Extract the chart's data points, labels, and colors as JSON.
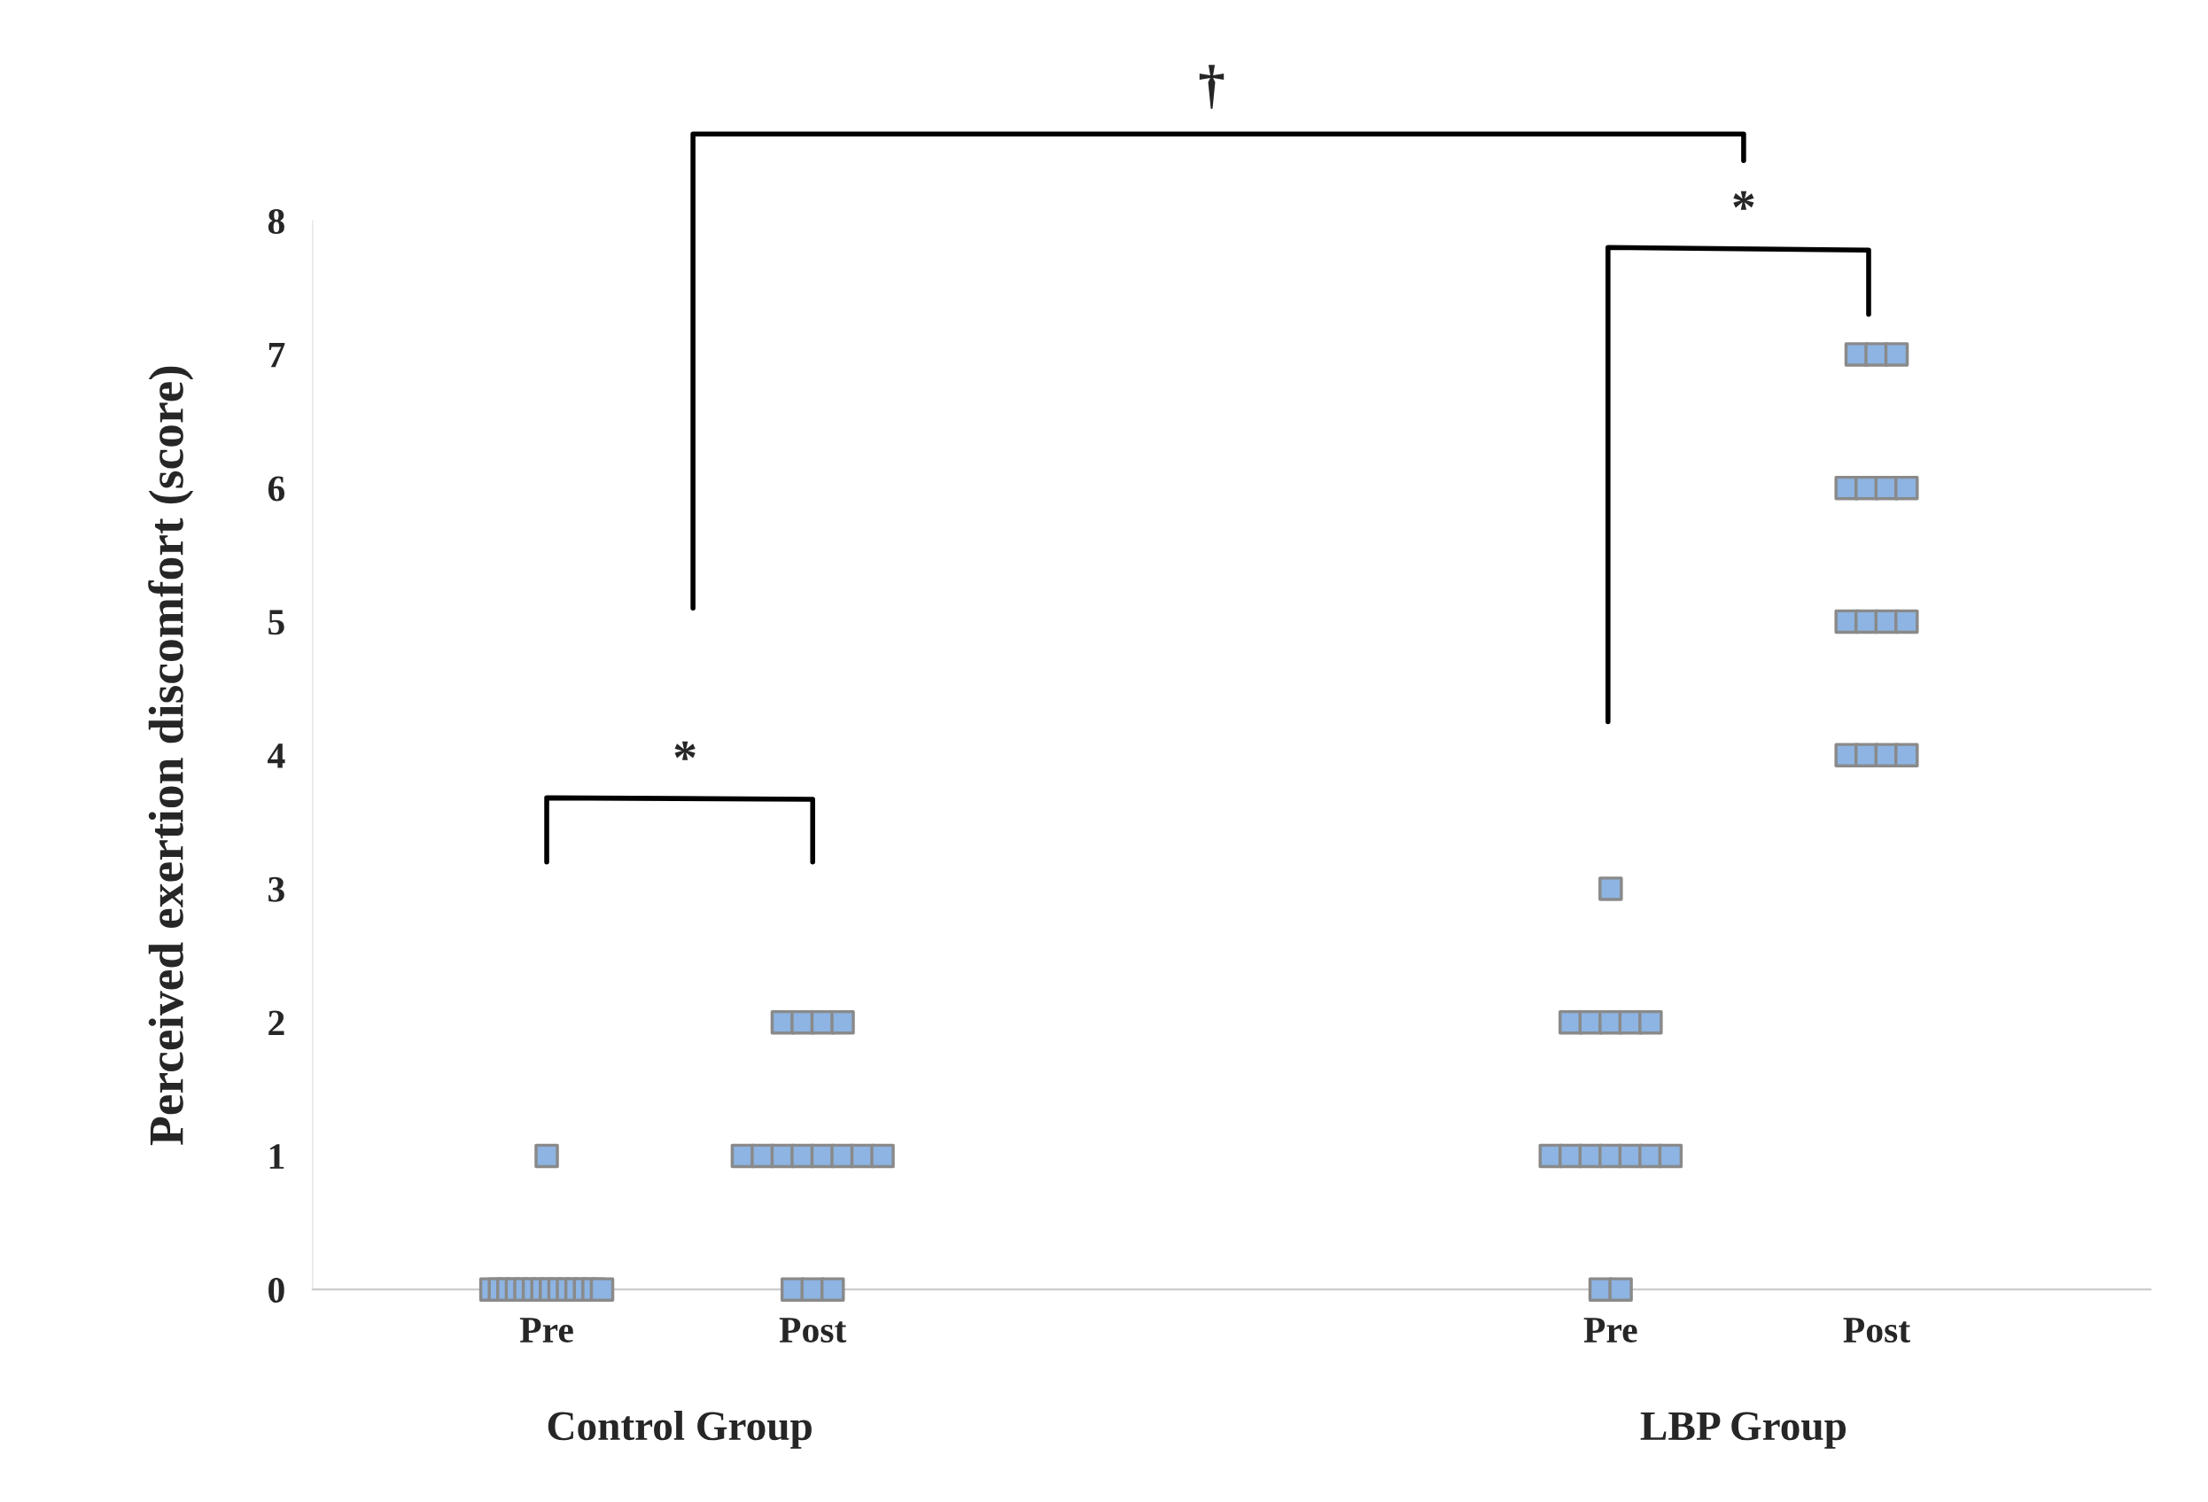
{
  "chart_data": {
    "type": "scatter",
    "ylabel": "Perceived exertion discomfort (score)",
    "categories": [
      "Pre",
      "Post",
      null,
      null,
      "Pre",
      "Post"
    ],
    "ylim": [
      0,
      8
    ],
    "yticks": [
      0,
      1,
      2,
      3,
      4,
      5,
      6,
      7,
      8
    ],
    "grid": false,
    "marker": "square",
    "series": [
      {
        "color": "#8db4e2",
        "values": [
          1,
          2,
          null,
          null,
          3,
          7
        ]
      },
      {
        "color": "#8db4e2",
        "values": [
          0,
          2,
          null,
          null,
          2,
          7
        ]
      },
      {
        "color": "#8db4e2",
        "values": [
          0,
          2,
          null,
          null,
          2,
          7
        ]
      },
      {
        "color": "#8db4e2",
        "values": [
          0,
          2,
          null,
          null,
          2,
          6
        ]
      },
      {
        "color": "#8db4e2",
        "values": [
          0,
          1,
          null,
          null,
          2,
          6
        ]
      },
      {
        "color": "#8db4e2",
        "values": [
          0,
          1,
          null,
          null,
          2,
          6
        ]
      },
      {
        "color": "#8db4e2",
        "values": [
          0,
          1,
          null,
          null,
          1,
          6
        ]
      },
      {
        "color": "#8db4e2",
        "values": [
          0,
          1,
          null,
          null,
          1,
          5
        ]
      },
      {
        "color": "#8db4e2",
        "values": [
          0,
          1,
          null,
          null,
          1,
          5
        ]
      },
      {
        "color": "#8db4e2",
        "values": [
          0,
          1,
          null,
          null,
          1,
          5
        ]
      },
      {
        "color": "#8db4e2",
        "values": [
          0,
          1,
          null,
          null,
          1,
          5
        ]
      },
      {
        "color": "#8db4e2",
        "values": [
          0,
          1,
          null,
          null,
          1,
          4
        ]
      },
      {
        "color": "#8db4e2",
        "values": [
          0,
          0,
          null,
          null,
          1,
          4
        ]
      },
      {
        "color": "#8db4e2",
        "values": [
          0,
          0,
          null,
          null,
          0,
          4
        ]
      },
      {
        "color": "#8db4e2",
        "values": [
          0,
          0,
          null,
          null,
          0,
          4
        ]
      }
    ],
    "annotations": [
      "†",
      "*",
      "*",
      "Control Group",
      "LBP Group"
    ]
  }
}
